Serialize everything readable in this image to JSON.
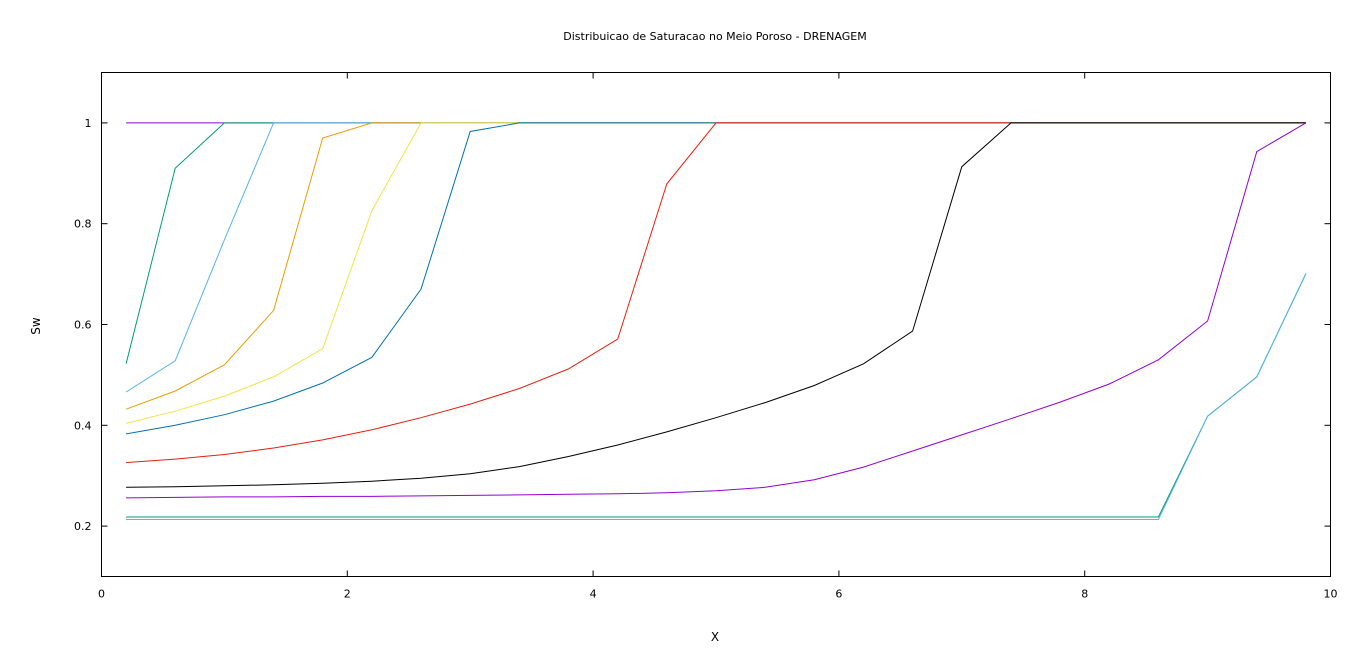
{
  "chart_data": {
    "type": "line",
    "title": "Distribuicao de Saturacao no Meio Poroso - DRENAGEM",
    "xlabel": "X",
    "ylabel": "Sw",
    "xlim": [
      0,
      10
    ],
    "ylim": [
      0.1,
      1.1
    ],
    "xticks": [
      0,
      2,
      4,
      6,
      8,
      10
    ],
    "yticks": [
      0.2,
      0.4,
      0.6,
      0.8,
      1
    ],
    "xtick_labels": [
      "0",
      "2",
      "4",
      "6",
      "8",
      "10"
    ],
    "ytick_labels": [
      "0.2",
      "0.4",
      "0.6",
      "0.8",
      "1"
    ],
    "grid": false,
    "legend": "none",
    "series": [
      {
        "color": "#9400D3",
        "x": [
          0.2,
          9.8
        ],
        "y": [
          1.0,
          1.0
        ]
      },
      {
        "color": "#009E73",
        "x": [
          0.2,
          0.6,
          1.0,
          1.4,
          9.8
        ],
        "y": [
          0.522,
          0.91,
          1.0,
          1.0,
          1.0
        ]
      },
      {
        "color": "#56B4E9",
        "x": [
          0.2,
          0.6,
          1.0,
          1.4,
          9.8
        ],
        "y": [
          0.466,
          0.528,
          0.768,
          1.0,
          1.0
        ]
      },
      {
        "color": "#E69F00",
        "x": [
          0.2,
          0.6,
          1.0,
          1.4,
          1.8,
          2.2,
          9.8
        ],
        "y": [
          0.432,
          0.468,
          0.52,
          0.628,
          0.97,
          1.0,
          1.0
        ]
      },
      {
        "color": "#F0E442",
        "x": [
          0.2,
          0.6,
          1.0,
          1.4,
          1.8,
          2.2,
          2.6,
          9.8
        ],
        "y": [
          0.404,
          0.428,
          0.458,
          0.496,
          0.552,
          0.826,
          1.0,
          1.0
        ]
      },
      {
        "color": "#0072B2",
        "x": [
          0.2,
          0.6,
          1.0,
          1.4,
          1.8,
          2.2,
          2.6,
          3.0,
          3.4,
          9.8
        ],
        "y": [
          0.383,
          0.4,
          0.421,
          0.448,
          0.484,
          0.535,
          0.67,
          0.983,
          1.0,
          1.0
        ]
      },
      {
        "color": "#E51E10",
        "x": [
          0.2,
          0.6,
          1.0,
          1.4,
          1.8,
          2.2,
          2.6,
          3.0,
          3.4,
          3.8,
          4.2,
          4.6,
          5.0,
          9.8
        ],
        "y": [
          0.326,
          0.333,
          0.342,
          0.355,
          0.371,
          0.391,
          0.415,
          0.442,
          0.473,
          0.512,
          0.571,
          0.879,
          1.0,
          1.0
        ]
      },
      {
        "color": "#000000",
        "x": [
          0.2,
          0.6,
          1.0,
          1.4,
          1.8,
          2.2,
          2.6,
          3.0,
          3.4,
          3.8,
          4.2,
          4.6,
          5.0,
          5.4,
          5.8,
          6.2,
          6.6,
          7.0,
          7.4,
          9.8
        ],
        "y": [
          0.277,
          0.278,
          0.28,
          0.282,
          0.285,
          0.289,
          0.295,
          0.304,
          0.318,
          0.338,
          0.361,
          0.387,
          0.415,
          0.445,
          0.479,
          0.522,
          0.587,
          0.913,
          1.0,
          1.0
        ]
      },
      {
        "color": "#9400D3",
        "x": [
          0.2,
          0.6,
          1.0,
          1.4,
          1.8,
          2.2,
          2.6,
          3.0,
          3.4,
          3.8,
          4.2,
          4.6,
          5.0,
          5.4,
          5.8,
          6.2,
          6.6,
          7.0,
          7.4,
          7.8,
          8.2,
          8.6,
          9.0,
          9.4,
          9.8
        ],
        "y": [
          0.256,
          0.257,
          0.258,
          0.258,
          0.259,
          0.259,
          0.26,
          0.261,
          0.262,
          0.263,
          0.264,
          0.266,
          0.27,
          0.277,
          0.292,
          0.317,
          0.349,
          0.381,
          0.413,
          0.446,
          0.482,
          0.53,
          0.607,
          0.943,
          1.0
        ]
      },
      {
        "color": "#009E73",
        "x": [
          0.2,
          8.6,
          9.0,
          9.4,
          9.8
        ],
        "y": [
          0.218,
          0.218,
          0.418,
          0.496,
          0.701
        ]
      },
      {
        "color": "#56B4E9",
        "x": [
          0.2,
          8.6,
          9.0,
          9.4,
          9.8
        ],
        "y": [
          0.213,
          0.213,
          0.418,
          0.496,
          0.701
        ]
      }
    ]
  }
}
